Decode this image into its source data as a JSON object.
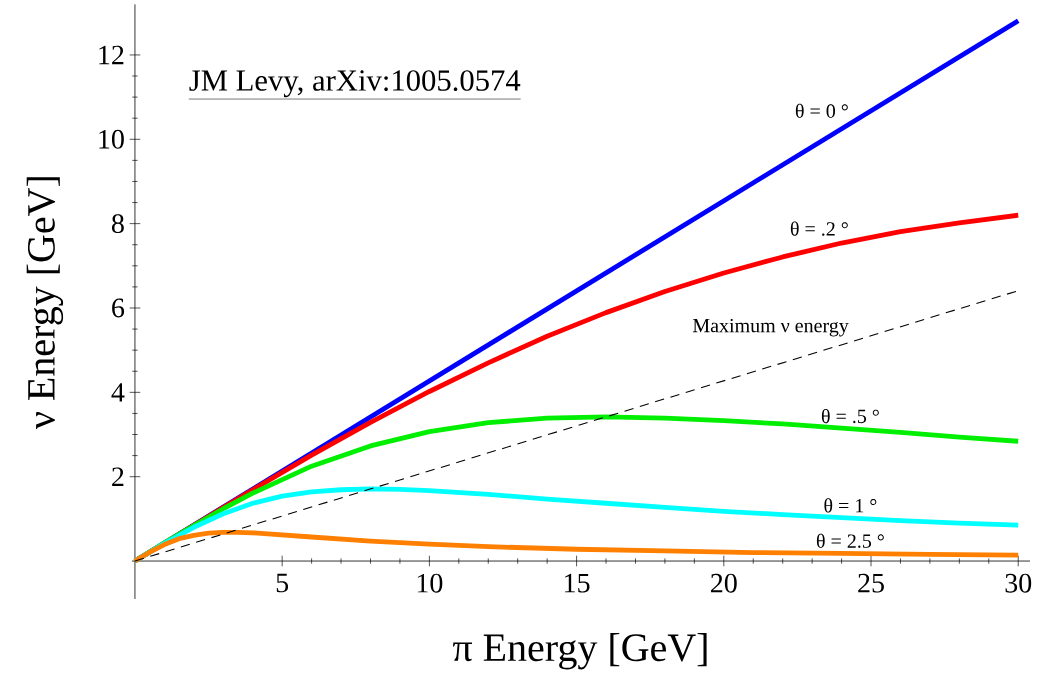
{
  "chart_data": {
    "type": "line",
    "xlabel": "π Energy [GeV]",
    "ylabel": "ν Energy  [GeV]",
    "annotations": [
      "JM Levy, arXiv:1005.0574"
    ],
    "xlim": [
      -0.1,
      30.4
    ],
    "ylim": [
      -0.9,
      13.2
    ],
    "xticks": [
      5,
      10,
      15,
      20,
      25,
      30
    ],
    "yticks": [
      2,
      4,
      6,
      8,
      10,
      12
    ],
    "series": [
      {
        "name": "θ = 0 °",
        "color": "#0000ff",
        "x": [
          0,
          30
        ],
        "values": [
          0,
          12.81
        ]
      },
      {
        "name": "θ = .2 °",
        "color": "#ff0000",
        "x": [
          0,
          2,
          4,
          6,
          8,
          10,
          12,
          14,
          16,
          18,
          20,
          22,
          24,
          26,
          28,
          30
        ],
        "values": [
          0,
          0.85,
          1.69,
          2.51,
          3.29,
          4.02,
          4.7,
          5.33,
          5.89,
          6.39,
          6.83,
          7.21,
          7.54,
          7.81,
          8.02,
          8.2
        ]
      },
      {
        "name": "θ = .5 °",
        "color": "#00ee00",
        "x": [
          0,
          1,
          2,
          3,
          4,
          6,
          8,
          10,
          12,
          14,
          16,
          18,
          20,
          22,
          24,
          26,
          28,
          30
        ],
        "values": [
          0,
          0.43,
          0.84,
          1.24,
          1.61,
          2.25,
          2.73,
          3.07,
          3.28,
          3.39,
          3.42,
          3.39,
          3.33,
          3.25,
          3.15,
          3.05,
          2.94,
          2.84
        ]
      },
      {
        "name": "θ = 1 °",
        "color": "#00ffff",
        "x": [
          0,
          1,
          2,
          3,
          4,
          5,
          6,
          7,
          8,
          9,
          10,
          12,
          14,
          16,
          18,
          20,
          22,
          24,
          26,
          28,
          30
        ],
        "values": [
          0,
          0.42,
          0.8,
          1.12,
          1.37,
          1.54,
          1.64,
          1.69,
          1.71,
          1.7,
          1.67,
          1.58,
          1.47,
          1.37,
          1.27,
          1.18,
          1.1,
          1.03,
          0.96,
          0.9,
          0.85
        ]
      },
      {
        "name": "θ = 2.5 °",
        "color": "#ff8000",
        "x": [
          0,
          0.5,
          1,
          1.5,
          2,
          2.5,
          3,
          3.5,
          4,
          5,
          6,
          8,
          10,
          12,
          15,
          18,
          21,
          24,
          27,
          30
        ],
        "values": [
          0,
          0.21,
          0.39,
          0.53,
          0.61,
          0.66,
          0.68,
          0.68,
          0.67,
          0.62,
          0.57,
          0.47,
          0.4,
          0.34,
          0.28,
          0.24,
          0.2,
          0.18,
          0.16,
          0.14
        ]
      },
      {
        "name": "Maximum ν energy",
        "color": "#000000",
        "line_style": "dashed",
        "x": [
          0,
          30
        ],
        "values": [
          0,
          6.41
        ]
      }
    ]
  }
}
